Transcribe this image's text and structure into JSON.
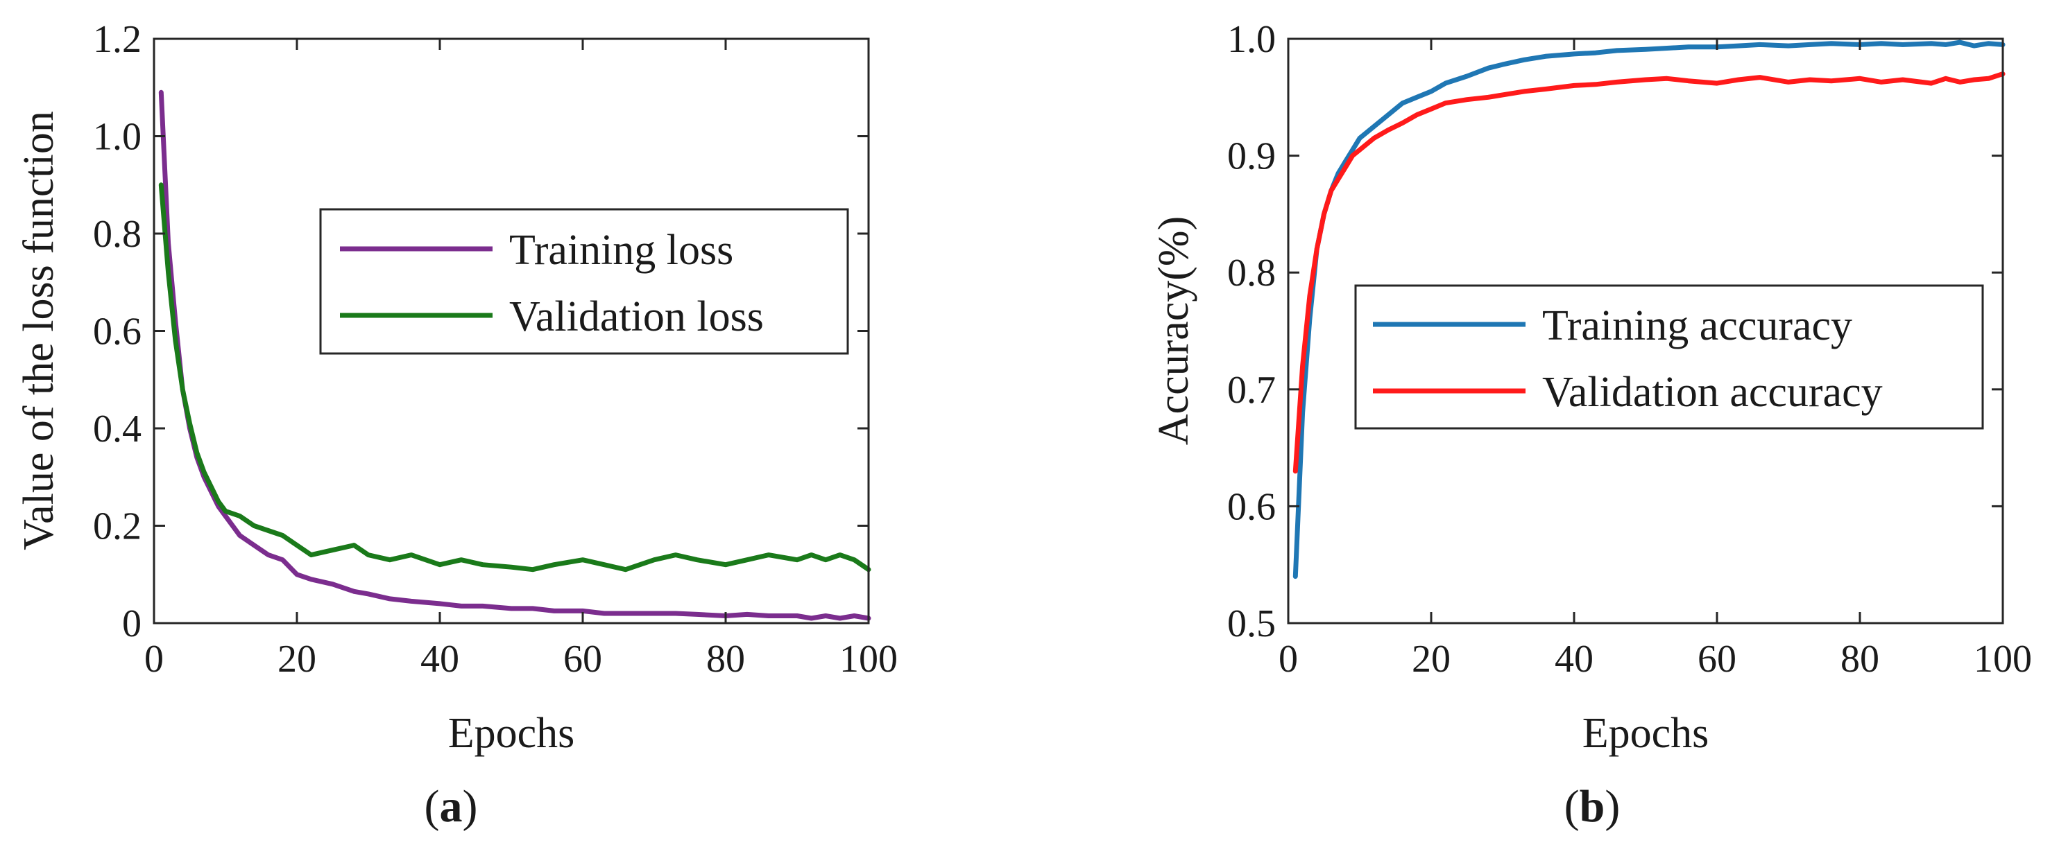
{
  "figure": {
    "panels": [
      {
        "label_open": "(",
        "label_letter": "a",
        "label_close": ")"
      },
      {
        "label_open": "(",
        "label_letter": "b",
        "label_close": ")"
      }
    ]
  },
  "chart_data": [
    {
      "type": "line",
      "title": "",
      "xlabel": "Epochs",
      "ylabel": "Value of the loss function",
      "xlim": [
        0,
        100
      ],
      "ylim": [
        0,
        1.2
      ],
      "xticks": [
        0,
        20,
        40,
        60,
        80,
        100
      ],
      "xtick_labels": [
        "0",
        "20",
        "40",
        "60",
        "80",
        "100"
      ],
      "yticks": [
        0,
        0.2,
        0.4,
        0.6,
        0.8,
        1.0,
        1.2
      ],
      "ytick_labels": [
        "0",
        "0.2",
        "0.4",
        "0.6",
        "0.8",
        "1.0",
        "1.2"
      ],
      "grid": false,
      "legend_position": "upper-right",
      "series": [
        {
          "name": "Training loss",
          "color": "#7B2D8E",
          "x": [
            1,
            2,
            3,
            4,
            5,
            6,
            7,
            8,
            9,
            10,
            12,
            14,
            16,
            18,
            20,
            22,
            25,
            28,
            30,
            33,
            36,
            40,
            43,
            46,
            50,
            53,
            56,
            60,
            63,
            66,
            70,
            73,
            76,
            80,
            83,
            86,
            90,
            92,
            94,
            96,
            98,
            100
          ],
          "values": [
            1.09,
            0.78,
            0.62,
            0.48,
            0.4,
            0.34,
            0.3,
            0.27,
            0.24,
            0.22,
            0.18,
            0.16,
            0.14,
            0.13,
            0.1,
            0.09,
            0.08,
            0.065,
            0.06,
            0.05,
            0.045,
            0.04,
            0.035,
            0.035,
            0.03,
            0.03,
            0.025,
            0.025,
            0.02,
            0.02,
            0.02,
            0.02,
            0.018,
            0.015,
            0.018,
            0.015,
            0.015,
            0.01,
            0.015,
            0.01,
            0.015,
            0.01
          ]
        },
        {
          "name": "Validation loss",
          "color": "#1A7A1A",
          "x": [
            1,
            2,
            3,
            4,
            5,
            6,
            7,
            8,
            9,
            10,
            12,
            14,
            16,
            18,
            20,
            22,
            25,
            28,
            30,
            33,
            36,
            40,
            43,
            46,
            50,
            53,
            56,
            60,
            63,
            66,
            70,
            73,
            76,
            80,
            83,
            86,
            90,
            92,
            94,
            96,
            98,
            100
          ],
          "values": [
            0.9,
            0.72,
            0.58,
            0.48,
            0.41,
            0.35,
            0.31,
            0.28,
            0.25,
            0.23,
            0.22,
            0.2,
            0.19,
            0.18,
            0.16,
            0.14,
            0.15,
            0.16,
            0.14,
            0.13,
            0.14,
            0.12,
            0.13,
            0.12,
            0.115,
            0.11,
            0.12,
            0.13,
            0.12,
            0.11,
            0.13,
            0.14,
            0.13,
            0.12,
            0.13,
            0.14,
            0.13,
            0.14,
            0.13,
            0.14,
            0.13,
            0.11
          ]
        }
      ]
    },
    {
      "type": "line",
      "title": "",
      "xlabel": "Epochs",
      "ylabel": "Accuracy(%)",
      "xlim": [
        0,
        100
      ],
      "ylim": [
        0.5,
        1.0
      ],
      "xticks": [
        0,
        20,
        40,
        60,
        80,
        100
      ],
      "xtick_labels": [
        "0",
        "20",
        "40",
        "60",
        "80",
        "100"
      ],
      "yticks": [
        0.5,
        0.6,
        0.7,
        0.8,
        0.9,
        1.0
      ],
      "ytick_labels": [
        "0.5",
        "0.6",
        "0.7",
        "0.8",
        "0.9",
        "1.0"
      ],
      "grid": false,
      "legend_position": "center-right",
      "series": [
        {
          "name": "Training accuracy",
          "color": "#1F77B4",
          "x": [
            1,
            2,
            3,
            4,
            5,
            6,
            7,
            8,
            9,
            10,
            12,
            14,
            16,
            18,
            20,
            22,
            25,
            28,
            30,
            33,
            36,
            40,
            43,
            46,
            50,
            53,
            56,
            60,
            63,
            66,
            70,
            73,
            76,
            80,
            83,
            86,
            90,
            92,
            94,
            96,
            98,
            100
          ],
          "values": [
            0.54,
            0.68,
            0.76,
            0.82,
            0.85,
            0.87,
            0.885,
            0.895,
            0.905,
            0.915,
            0.925,
            0.935,
            0.945,
            0.95,
            0.955,
            0.962,
            0.968,
            0.975,
            0.978,
            0.982,
            0.985,
            0.987,
            0.988,
            0.99,
            0.991,
            0.992,
            0.993,
            0.993,
            0.994,
            0.995,
            0.994,
            0.995,
            0.996,
            0.995,
            0.996,
            0.995,
            0.996,
            0.995,
            0.997,
            0.994,
            0.996,
            0.995
          ]
        },
        {
          "name": "Validation accuracy",
          "color": "#FF1A1A",
          "x": [
            1,
            2,
            3,
            4,
            5,
            6,
            7,
            8,
            9,
            10,
            12,
            14,
            16,
            18,
            20,
            22,
            25,
            28,
            30,
            33,
            36,
            40,
            43,
            46,
            50,
            53,
            56,
            60,
            63,
            66,
            70,
            73,
            76,
            80,
            83,
            86,
            90,
            92,
            94,
            96,
            98,
            100
          ],
          "values": [
            0.63,
            0.72,
            0.78,
            0.82,
            0.85,
            0.87,
            0.88,
            0.89,
            0.9,
            0.905,
            0.915,
            0.922,
            0.928,
            0.935,
            0.94,
            0.945,
            0.948,
            0.95,
            0.952,
            0.955,
            0.957,
            0.96,
            0.961,
            0.963,
            0.965,
            0.966,
            0.964,
            0.962,
            0.965,
            0.967,
            0.963,
            0.965,
            0.964,
            0.966,
            0.963,
            0.965,
            0.962,
            0.966,
            0.963,
            0.965,
            0.966,
            0.97
          ]
        }
      ]
    }
  ]
}
